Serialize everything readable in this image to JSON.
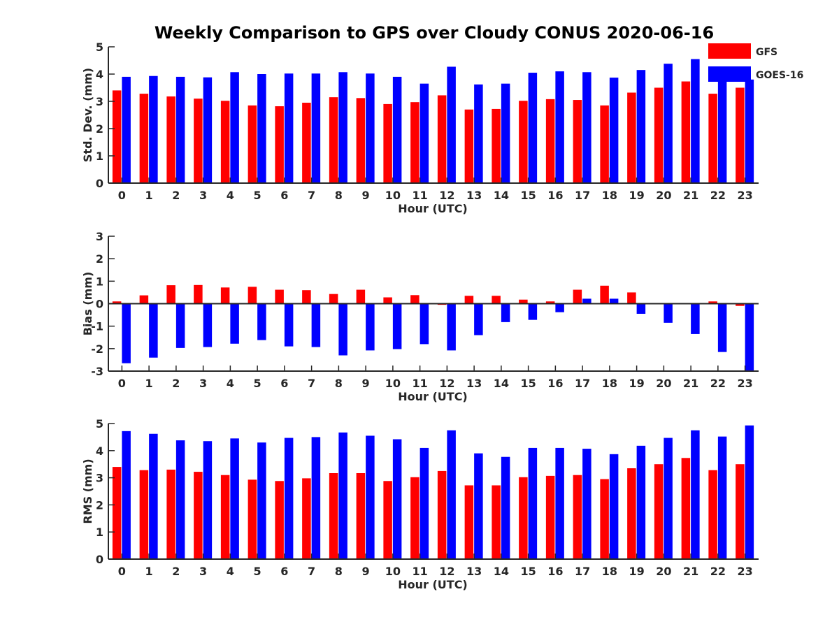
{
  "chart_data": {
    "type": "bar",
    "title": "Weekly Comparison to GPS over Cloudy CONUS 2020-06-16",
    "categories": [
      "0",
      "1",
      "2",
      "3",
      "4",
      "5",
      "6",
      "7",
      "8",
      "9",
      "10",
      "11",
      "12",
      "13",
      "14",
      "15",
      "16",
      "17",
      "18",
      "19",
      "20",
      "21",
      "22",
      "23"
    ],
    "legend": {
      "placement": "top-right",
      "entries": [
        {
          "name": "GFS",
          "color": "#ff0000"
        },
        {
          "name": "GOES-16",
          "color": "#0000ff"
        }
      ]
    },
    "panels": [
      {
        "xlabel": "Hour (UTC)",
        "ylabel": "Std. Dev. (mm)",
        "ylim": [
          0,
          5
        ],
        "yticks": [
          0,
          1,
          2,
          3,
          4,
          5
        ],
        "series": [
          {
            "name": "GFS",
            "color": "#ff0000",
            "values": [
              3.4,
              3.28,
              3.18,
              3.1,
              3.02,
              2.85,
              2.82,
              2.95,
              3.15,
              3.12,
              2.9,
              2.97,
              3.22,
              2.7,
              2.72,
              3.02,
              3.08,
              3.05,
              2.85,
              3.32,
              3.5,
              3.73,
              3.28,
              3.5
            ]
          },
          {
            "name": "GOES-16",
            "color": "#0000ff",
            "values": [
              3.9,
              3.93,
              3.9,
              3.88,
              4.07,
              4.0,
              4.02,
              4.02,
              4.07,
              4.02,
              3.9,
              3.65,
              4.27,
              3.62,
              3.65,
              4.05,
              4.1,
              4.07,
              3.87,
              4.15,
              4.38,
              4.55,
              3.95,
              3.8
            ]
          }
        ]
      },
      {
        "xlabel": "Hour (UTC)",
        "ylabel": "Bias (mm)",
        "ylim": [
          -3,
          3
        ],
        "yticks": [
          -3,
          -2,
          -1,
          0,
          1,
          2,
          3
        ],
        "series": [
          {
            "name": "GFS",
            "color": "#ff0000",
            "values": [
              0.1,
              0.37,
              0.82,
              0.83,
              0.72,
              0.75,
              0.62,
              0.6,
              0.43,
              0.62,
              0.28,
              0.38,
              -0.05,
              0.35,
              0.35,
              0.18,
              0.1,
              0.62,
              0.8,
              0.5,
              -0.02,
              0.0,
              0.1,
              -0.1
            ]
          },
          {
            "name": "GOES-16",
            "color": "#0000ff",
            "values": [
              -2.65,
              -2.4,
              -1.97,
              -1.93,
              -1.78,
              -1.62,
              -1.9,
              -1.93,
              -2.3,
              -2.08,
              -2.02,
              -1.8,
              -2.08,
              -1.4,
              -0.82,
              -0.72,
              -0.38,
              0.22,
              0.22,
              -0.45,
              -0.85,
              -1.35,
              -2.15,
              -2.98
            ]
          }
        ]
      },
      {
        "xlabel": "Hour (UTC)",
        "ylabel": "RMS (mm)",
        "ylim": [
          0,
          5
        ],
        "yticks": [
          0,
          1,
          2,
          3,
          4,
          5
        ],
        "series": [
          {
            "name": "GFS",
            "color": "#ff0000",
            "values": [
              3.4,
              3.28,
              3.3,
              3.22,
              3.1,
              2.93,
              2.88,
              2.98,
              3.17,
              3.17,
              2.88,
              3.02,
              3.25,
              2.72,
              2.72,
              3.02,
              3.07,
              3.1,
              2.95,
              3.35,
              3.5,
              3.73,
              3.28,
              3.5
            ]
          },
          {
            "name": "GOES-16",
            "color": "#0000ff",
            "values": [
              4.72,
              4.62,
              4.38,
              4.35,
              4.45,
              4.3,
              4.47,
              4.5,
              4.67,
              4.55,
              4.42,
              4.1,
              4.75,
              3.9,
              3.77,
              4.1,
              4.1,
              4.07,
              3.87,
              4.18,
              4.47,
              4.75,
              4.52,
              4.93
            ]
          }
        ]
      }
    ]
  }
}
